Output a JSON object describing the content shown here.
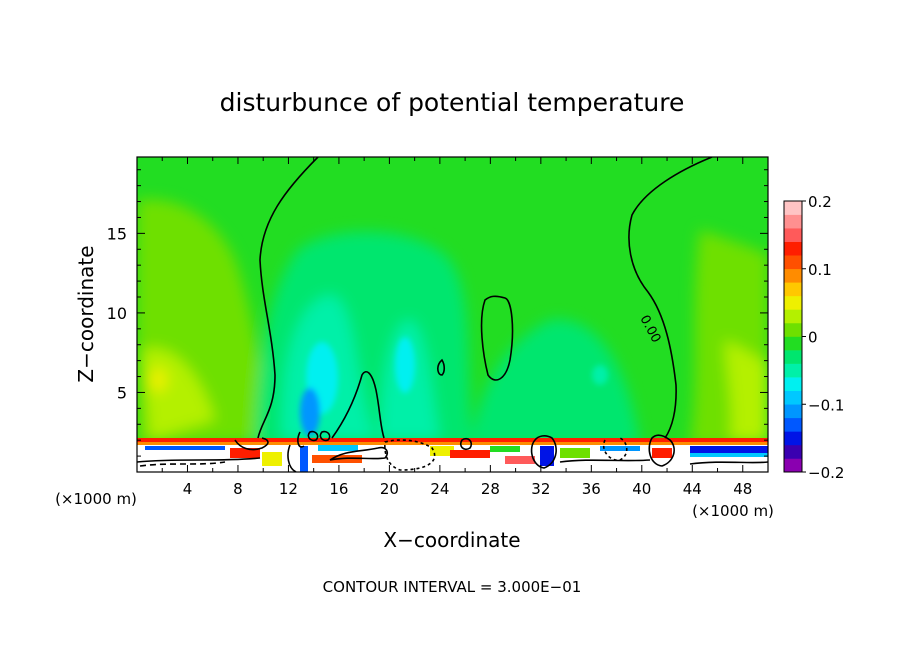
{
  "chart_data": {
    "type": "heatmap",
    "title": "disturbunce of potential temperature",
    "xlabel": "X−coordinate",
    "ylabel": "Z−coordinate",
    "x_unit": "(×1000 m)",
    "y_unit": "(×1000 m)",
    "xlim": [
      0,
      50
    ],
    "ylim": [
      0,
      19.8
    ],
    "x_ticks": [
      4,
      8,
      12,
      16,
      20,
      24,
      28,
      32,
      36,
      40,
      44,
      48
    ],
    "y_ticks": [
      5,
      10,
      15
    ],
    "colorbar": {
      "range": [
        -0.2,
        0.2
      ],
      "tick_values": [
        0.2,
        0.1,
        0,
        -0.1,
        -0.2
      ],
      "tick_labels": [
        "0.2",
        "0.1",
        "0",
        "−0.1",
        "−0.2"
      ],
      "colors": [
        "#8a00b0",
        "#3a00b0",
        "#0014e6",
        "#0058ff",
        "#0096ff",
        "#00c8ff",
        "#00f0f0",
        "#00f0a8",
        "#00e66e",
        "#22dd22",
        "#6ee000",
        "#b4f000",
        "#eef000",
        "#ffc800",
        "#ff8c00",
        "#ff5000",
        "#ff1e00",
        "#ff5a5a",
        "#ff9090",
        "#ffc4c4"
      ]
    },
    "contour_label": "0.00",
    "footer": "CONTOUR INTERVAL = 3.000E−01"
  }
}
